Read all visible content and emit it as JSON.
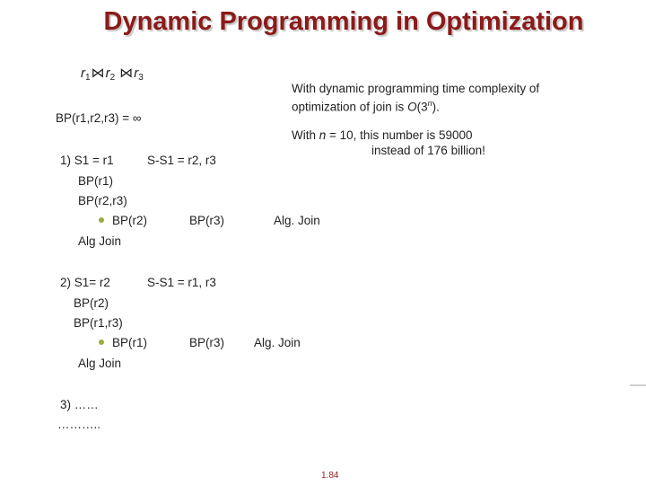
{
  "title": "Dynamic Programming in Optimization",
  "expression": {
    "r1": "r",
    "s1": "1",
    "r2": "r",
    "s2": "2",
    "r3": "r",
    "s3": "3",
    "join_symbol": "⋈"
  },
  "bp_init": "BP(r1,r2,r3) = ∞",
  "note": {
    "line1": "With dynamic programming time complexity of",
    "line2_pre": "optimization of join is ",
    "line2_o": "O",
    "line2_open": "(3",
    "line2_n": "n",
    "line2_close": ").",
    "line3_pre": "With ",
    "line3_n": "n",
    "line3_post": " = 10, this number is 59000",
    "line4": "instead of 176 billion!"
  },
  "case1": {
    "head": "1) S1 = r1",
    "rest": "S-S1 = r2, r3",
    "bp_a": "BP(r1)",
    "bp_b": "BP(r2,r3)",
    "sub_a": "BP(r2)",
    "sub_b": "BP(r3)",
    "sub_alg": "Alg. Join",
    "alg": "Alg Join"
  },
  "case2": {
    "head": "2) S1= r2",
    "rest": "S-S1 = r1, r3",
    "bp_a": "BP(r2)",
    "bp_b": "BP(r1,r3)",
    "sub_a": "BP(r1)",
    "sub_b": "BP(r3)",
    "sub_alg": "Alg. Join",
    "alg": "Alg Join"
  },
  "case3": {
    "head": "3) ……",
    "dots": "……….."
  },
  "page_number": "1.84",
  "colors": {
    "title": "#8B1A1A",
    "bullet": "#9aae3a",
    "text": "#222222"
  }
}
